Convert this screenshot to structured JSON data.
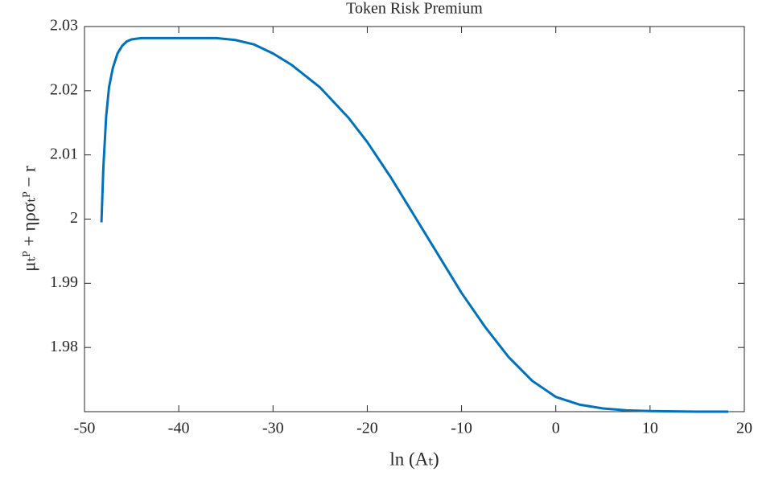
{
  "chart_data": {
    "type": "line",
    "title": "Token Risk Premium",
    "x_label": "ln (Aₜ)",
    "y_label": "μₜᴾ + ηρσₜᴾ − r",
    "x": [
      -48.2,
      -48.0,
      -47.7,
      -47.4,
      -47.0,
      -46.5,
      -46.0,
      -45.5,
      -45.0,
      -44.0,
      -42.0,
      -40.0,
      -38.0,
      -36.0,
      -34.0,
      -32.0,
      -30.0,
      -28.0,
      -25.0,
      -22.0,
      -20.0,
      -17.5,
      -15.0,
      -12.5,
      -10.0,
      -7.5,
      -5.0,
      -2.5,
      0.0,
      2.5,
      5.0,
      7.5,
      10.0,
      12.5,
      15.0,
      18.3
    ],
    "values": [
      1.9995,
      2.008,
      2.016,
      2.0205,
      2.0235,
      2.0258,
      2.027,
      2.0277,
      2.028,
      2.0282,
      2.0282,
      2.0282,
      2.0282,
      2.0282,
      2.0279,
      2.0272,
      2.0258,
      2.024,
      2.0205,
      2.0158,
      2.012,
      2.0065,
      2.0005,
      1.9945,
      1.9885,
      1.9832,
      1.9785,
      1.9748,
      1.9723,
      1.9711,
      1.9705,
      1.9702,
      1.9701,
      1.97005,
      1.97,
      1.97
    ],
    "color": "#0072bd",
    "xlim": [
      -50,
      20
    ],
    "xticks": [
      -50,
      -40,
      -30,
      -20,
      -10,
      0,
      10,
      20
    ],
    "ylim": [
      1.97,
      2.03
    ],
    "yticks": [
      1.98,
      1.99,
      2,
      2.01,
      2.02,
      2.03
    ],
    "grid": false
  }
}
